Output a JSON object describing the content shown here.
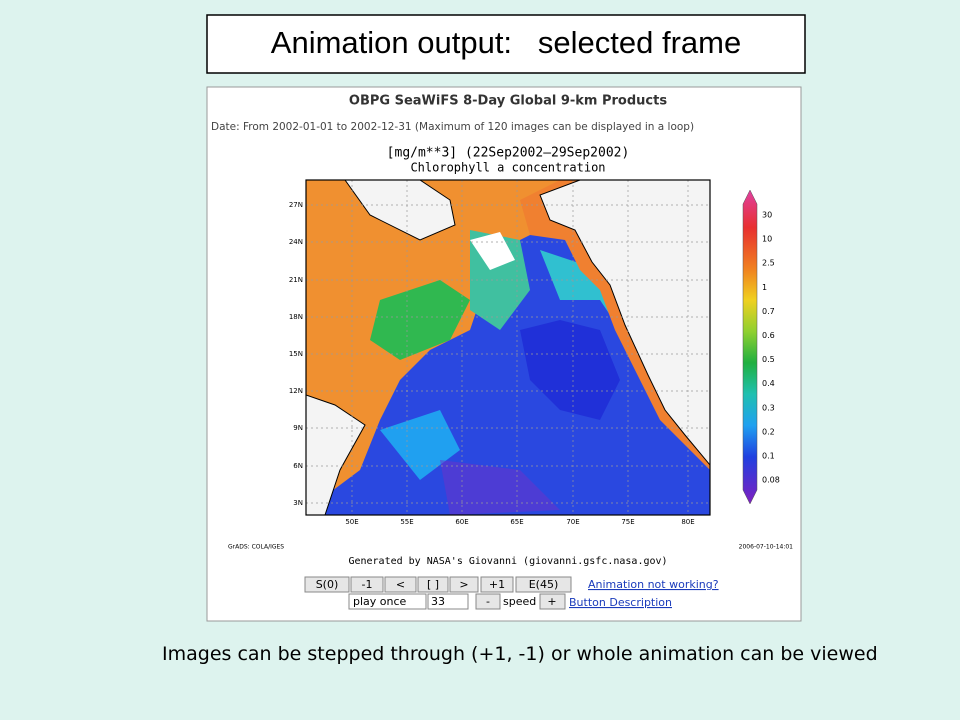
{
  "slide": {
    "title": "Animation output:   selected frame",
    "caption": "Images can be stepped through (+1, -1) or whole animation can be viewed"
  },
  "screenshot": {
    "heading": "OBPG SeaWiFS 8-Day Global 9-km Products",
    "date_range": "Date: From 2002-01-01 to 2002-12-31 (Maximum of 120 images can be displayed in a loop)",
    "plot_title": "[mg/m**3] (22Sep2002–29Sep2002)",
    "plot_subtitle": "Chlorophyll a concentration",
    "lat_labels": [
      "27N",
      "24N",
      "21N",
      "18N",
      "15N",
      "12N",
      "9N",
      "6N",
      "3N"
    ],
    "lon_labels": [
      "50E",
      "55E",
      "60E",
      "65E",
      "70E",
      "75E",
      "80E"
    ],
    "colorbar_labels": [
      "30",
      "10",
      "2.5",
      "1",
      "0.7",
      "0.6",
      "0.5",
      "0.4",
      "0.3",
      "0.2",
      "0.1",
      "0.08"
    ],
    "credit_left": "GrADS: COLA/IGES",
    "credit_center": "Generated by NASA's Giovanni (giovanni.gsfc.nasa.gov)",
    "timestamp": "2006-07-10-14:01",
    "buttons": [
      "S(0)",
      "-1",
      "<",
      "[ ]",
      ">",
      "+1",
      "E(45)"
    ],
    "link_help": "Animation not working?",
    "loop_mode": "play once",
    "frame_input": "33",
    "speed_down": "-",
    "speed_label": "speed",
    "speed_up": "+",
    "link_buttons": "Button Description"
  }
}
